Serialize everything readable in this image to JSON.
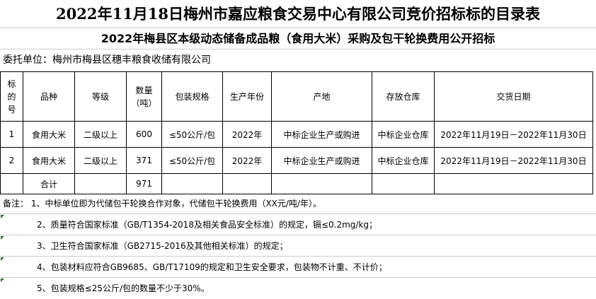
{
  "title": "2022年11月18日梅州市嘉应粮食交易中心有限公司竞价招标标的目录表",
  "subtitle": "2022年梅县区本级动态储备成品粮（食用大米）采购及包干轮换费用公开招标",
  "consignor": "委托单位：梅州市梅县区穗丰粮食收储有限公司",
  "table": {
    "headers": [
      "标的号",
      "品种",
      "等级",
      "数量（吨）",
      "包装规格",
      "生产年份",
      "产地",
      "存放仓库",
      "交货日期"
    ],
    "rows": [
      [
        "1",
        "食用大米",
        "二级以上",
        "600",
        "≤50公斤/包",
        "2022年",
        "中标企业生产或购进",
        "中标企业仓库",
        "2022年11月19日－2022年11月30日"
      ],
      [
        "2",
        "食用大米",
        "二级以上",
        "371",
        "≤50公斤/包",
        "2022年",
        "中标企业生产或购进",
        "中标企业仓库",
        "2022年11月19日－2022年11月30日"
      ]
    ],
    "total": {
      "label": "合计",
      "quantity": "971"
    }
  },
  "notes": [
    "备注： 1、中标单位即为代储包干轮换合作对象，代储包干轮换费用（XX元/吨/年）。",
    "2、质量符合国家标准（GB/T1354-2018及相关食品安全标准）的规定，镉≤0.2mg/kg；",
    "3、卫生符合国家标准（GB2715-2016及其他相关标准）的规定；",
    "4、包装材料应符合GB9685、GB/T17109的规定和卫生安全要求，包装物不计重、不计价；",
    "5、包装规格≤25公斤/包的数量不少于30%。"
  ]
}
